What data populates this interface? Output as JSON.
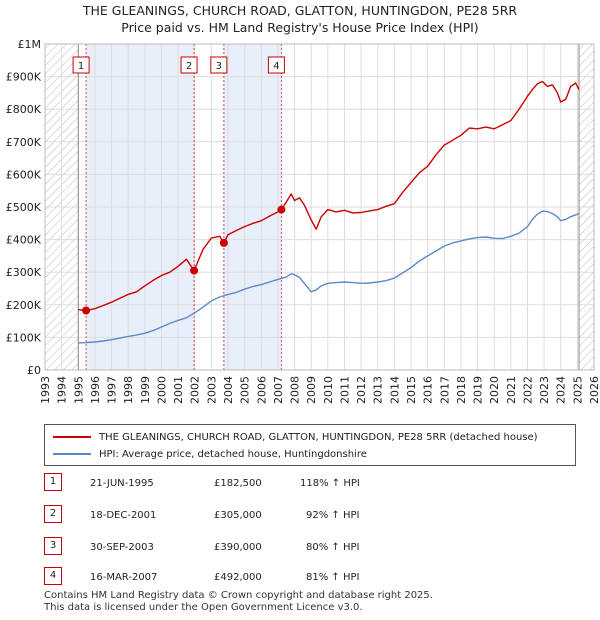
{
  "title": {
    "line1": "THE GLEANINGS, CHURCH ROAD, GLATTON, HUNTINGDON, PE28 5RR",
    "line2": "Price paid vs. HM Land Registry's House Price Index (HPI)"
  },
  "colors": {
    "property": "#cc0000",
    "hpi": "#5b8ac8",
    "hatch": "#bbbbbb",
    "grid": "#dddddd",
    "span": "#e8eefa"
  },
  "chart_data": {
    "type": "line",
    "title": "Price paid vs. HM Land Registry's House Price Index (HPI)",
    "xlabel": "",
    "ylabel": "",
    "xlim": [
      1993,
      2026
    ],
    "ylim": [
      0,
      1000000
    ],
    "x_ticks": [
      1993,
      1994,
      1995,
      1996,
      1997,
      1998,
      1999,
      2000,
      2001,
      2002,
      2003,
      2004,
      2005,
      2006,
      2007,
      2008,
      2009,
      2010,
      2011,
      2012,
      2013,
      2014,
      2015,
      2016,
      2017,
      2018,
      2019,
      2020,
      2021,
      2022,
      2023,
      2024,
      2025,
      2026
    ],
    "y_ticks": [
      {
        "value": 0,
        "label": "£0"
      },
      {
        "value": 100000,
        "label": "£100K"
      },
      {
        "value": 200000,
        "label": "£200K"
      },
      {
        "value": 300000,
        "label": "£300K"
      },
      {
        "value": 400000,
        "label": "£400K"
      },
      {
        "value": 500000,
        "label": "£500K"
      },
      {
        "value": 600000,
        "label": "£600K"
      },
      {
        "value": 700000,
        "label": "£700K"
      },
      {
        "value": 800000,
        "label": "£800K"
      },
      {
        "value": 900000,
        "label": "£900K"
      },
      {
        "value": 1000000,
        "label": "£1M"
      }
    ],
    "hatched_ranges": [
      [
        1993,
        1995.0
      ],
      [
        2025.1,
        2026
      ]
    ],
    "shaded_spans": [
      [
        1995.47,
        2001.96
      ],
      [
        2003.75,
        2007.21
      ]
    ],
    "series": [
      {
        "name": "THE GLEANINGS, CHURCH ROAD, GLATTON, HUNTINGDON, PE28 5RR (detached house)",
        "color": "#cc0000",
        "x": [
          1995.0,
          1995.47,
          1996.0,
          1996.5,
          1997.0,
          1997.5,
          1998.0,
          1998.5,
          1999.0,
          1999.5,
          2000.0,
          2000.5,
          2001.0,
          2001.5,
          2001.96,
          2002.5,
          2003.0,
          2003.5,
          2003.75,
          2004.0,
          2004.5,
          2005.0,
          2005.5,
          2006.0,
          2006.5,
          2007.0,
          2007.21,
          2007.5,
          2007.8,
          2008.0,
          2008.3,
          2008.6,
          2009.0,
          2009.3,
          2009.6,
          2010.0,
          2010.5,
          2011.0,
          2011.5,
          2012.0,
          2012.5,
          2013.0,
          2013.5,
          2014.0,
          2014.5,
          2015.0,
          2015.5,
          2016.0,
          2016.5,
          2017.0,
          2017.5,
          2018.0,
          2018.5,
          2019.0,
          2019.5,
          2020.0,
          2020.5,
          2021.0,
          2021.5,
          2022.0,
          2022.3,
          2022.6,
          2022.9,
          2023.2,
          2023.5,
          2023.8,
          2024.0,
          2024.3,
          2024.6,
          2024.9,
          2025.1
        ],
        "values": [
          185000,
          182500,
          188000,
          198000,
          208000,
          220000,
          232000,
          240000,
          258000,
          275000,
          290000,
          300000,
          318000,
          340000,
          305000,
          370000,
          405000,
          410000,
          390000,
          415000,
          428000,
          440000,
          450000,
          458000,
          472000,
          485000,
          492000,
          515000,
          540000,
          520000,
          528000,
          505000,
          460000,
          432000,
          470000,
          492000,
          485000,
          490000,
          482000,
          483000,
          488000,
          492000,
          502000,
          510000,
          545000,
          575000,
          605000,
          625000,
          660000,
          690000,
          705000,
          720000,
          742000,
          740000,
          745000,
          740000,
          752000,
          765000,
          800000,
          840000,
          860000,
          878000,
          885000,
          870000,
          875000,
          850000,
          822000,
          830000,
          870000,
          880000,
          860000
        ]
      },
      {
        "name": "HPI: Average price, detached house, Huntingdonshire",
        "color": "#5b8ac8",
        "x": [
          1995.0,
          1995.5,
          1996.0,
          1996.5,
          1997.0,
          1997.5,
          1998.0,
          1998.5,
          1999.0,
          1999.5,
          2000.0,
          2000.5,
          2001.0,
          2001.5,
          2002.0,
          2002.5,
          2003.0,
          2003.5,
          2004.0,
          2004.5,
          2005.0,
          2005.5,
          2006.0,
          2006.5,
          2007.0,
          2007.5,
          2007.8,
          2008.0,
          2008.3,
          2008.6,
          2009.0,
          2009.3,
          2009.6,
          2010.0,
          2010.5,
          2011.0,
          2011.5,
          2012.0,
          2012.5,
          2013.0,
          2013.5,
          2014.0,
          2014.5,
          2015.0,
          2015.5,
          2016.0,
          2016.5,
          2017.0,
          2017.5,
          2018.0,
          2018.5,
          2019.0,
          2019.5,
          2020.0,
          2020.5,
          2021.0,
          2021.5,
          2022.0,
          2022.3,
          2022.6,
          2022.9,
          2023.2,
          2023.5,
          2023.8,
          2024.0,
          2024.3,
          2024.6,
          2024.9,
          2025.1
        ],
        "values": [
          83000,
          84000,
          86000,
          89000,
          93000,
          98000,
          103000,
          107000,
          113000,
          121000,
          132000,
          143000,
          152000,
          160000,
          175000,
          193000,
          212000,
          224000,
          232000,
          238000,
          248000,
          256000,
          262000,
          270000,
          278000,
          285000,
          295000,
          292000,
          284000,
          265000,
          240000,
          246000,
          258000,
          266000,
          268000,
          270000,
          268000,
          266000,
          267000,
          270000,
          274000,
          282000,
          298000,
          314000,
          334000,
          350000,
          365000,
          380000,
          390000,
          396000,
          402000,
          406000,
          408000,
          404000,
          403000,
          410000,
          420000,
          440000,
          462000,
          478000,
          487000,
          486000,
          480000,
          470000,
          458000,
          462000,
          470000,
          476000,
          480000
        ]
      }
    ],
    "sales": [
      {
        "label": "1",
        "x": 1995.47,
        "value": 182500
      },
      {
        "label": "2",
        "x": 2001.96,
        "value": 305000
      },
      {
        "label": "3",
        "x": 2003.75,
        "value": 390000
      },
      {
        "label": "4",
        "x": 2007.21,
        "value": 492000
      }
    ]
  },
  "legend": {
    "property": "THE GLEANINGS, CHURCH ROAD, GLATTON, HUNTINGDON, PE28 5RR (detached house)",
    "hpi": "HPI: Average price, detached house, Huntingdonshire"
  },
  "transactions": [
    {
      "num": "1",
      "date": "21-JUN-1995",
      "price": "£182,500",
      "hpi": "118% ↑ HPI"
    },
    {
      "num": "2",
      "date": "18-DEC-2001",
      "price": "£305,000",
      "hpi": "92% ↑ HPI"
    },
    {
      "num": "3",
      "date": "30-SEP-2003",
      "price": "£390,000",
      "hpi": "80% ↑ HPI"
    },
    {
      "num": "4",
      "date": "16-MAR-2007",
      "price": "£492,000",
      "hpi": "81% ↑ HPI"
    }
  ],
  "footer": {
    "line1": "Contains HM Land Registry data © Crown copyright and database right 2025.",
    "line2": "This data is licensed under the Open Government Licence v3.0."
  }
}
